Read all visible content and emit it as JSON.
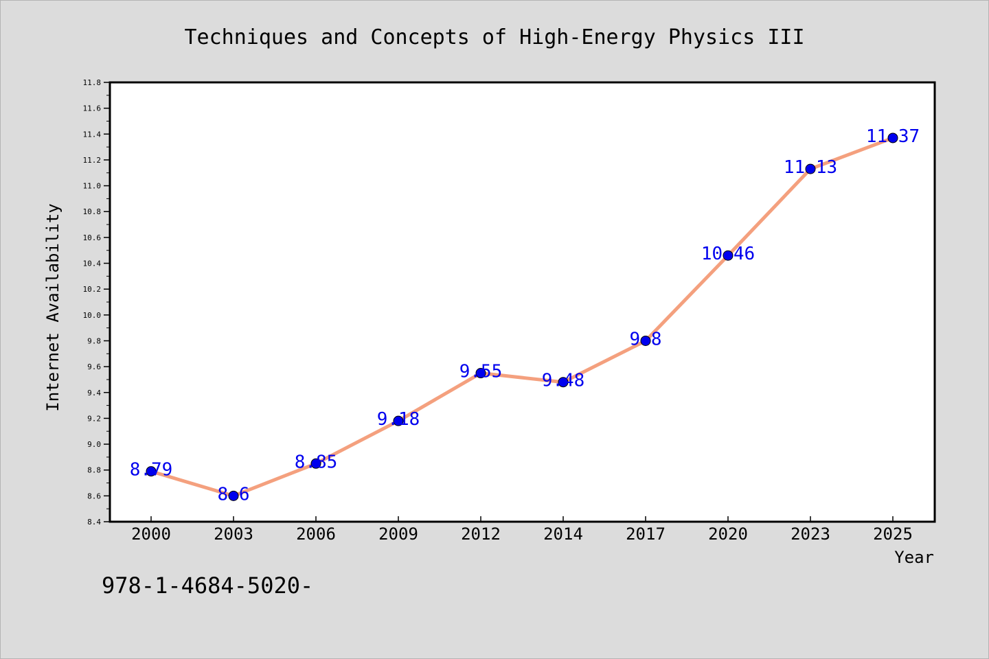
{
  "chart_data": {
    "type": "line",
    "title": "Techniques and Concepts of High-Energy Physics III",
    "xlabel": "Year",
    "ylabel": "Internet Availability",
    "categories": [
      "2000",
      "2003",
      "2006",
      "2009",
      "2012",
      "2014",
      "2017",
      "2020",
      "2023",
      "2025"
    ],
    "series": [
      {
        "values": [
          8.79,
          8.6,
          8.85,
          9.18,
          9.55,
          9.48,
          9.8,
          10.46,
          11.13,
          11.37
        ]
      }
    ],
    "data_labels": [
      "8.79",
      "8.6",
      "8.85",
      "9.18",
      "9.55",
      "9.48",
      "9.8",
      "10.46",
      "11.13",
      "11.37"
    ],
    "ylim": [
      8.4,
      11.8
    ],
    "yticks": [
      "8.4",
      "8.6",
      "8.8",
      "9.0",
      "9.2",
      "9.4",
      "9.6",
      "9.8",
      "10.0",
      "10.2",
      "10.4",
      "10.6",
      "10.8",
      "11.0",
      "11.2",
      "11.4",
      "11.6",
      "11.8"
    ],
    "grid": false,
    "colors": {
      "line": "#f4a07e",
      "marker": "#0000ee",
      "data_label": "#0000ee",
      "plot_background": "#ffffff",
      "figure_background": "#dcdcdc"
    }
  },
  "footer": {
    "isbn_text": "978-1-4684-5020-"
  }
}
